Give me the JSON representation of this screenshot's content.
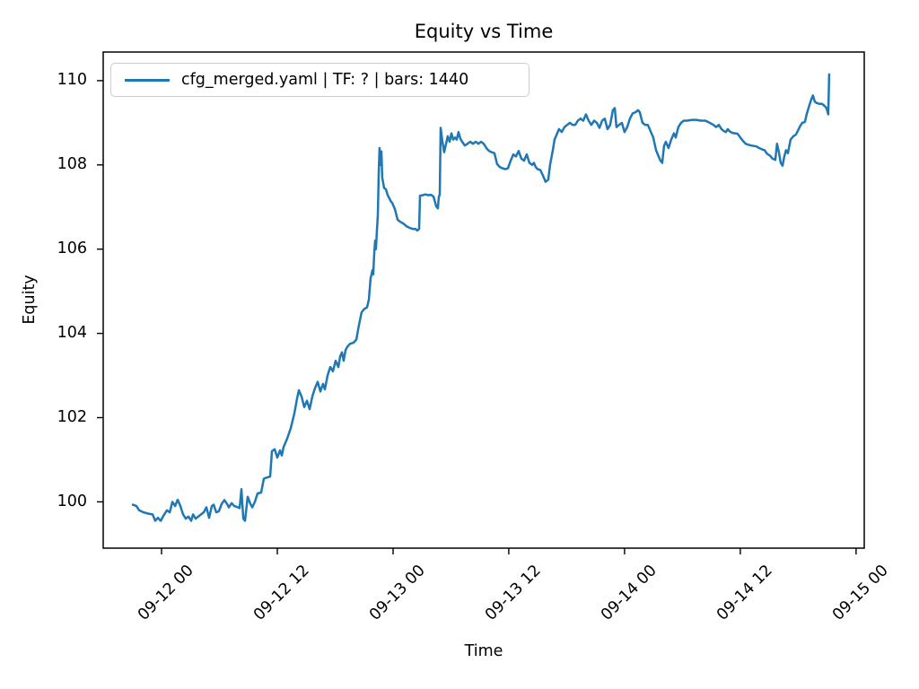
{
  "figure": {
    "title": "Equity vs Time",
    "x_axis_label": "Time",
    "y_axis_label": "Equity"
  },
  "legend": {
    "entries": [
      {
        "label": "cfg_merged.yaml | TF: ? | bars: 1440",
        "color": "#1f77b4"
      }
    ]
  },
  "colors": {
    "line": "#1f77b4",
    "spine": "#000000",
    "text": "#000000",
    "legend_border": "#cccccc",
    "background": "#ffffff"
  },
  "chart_data": {
    "type": "line",
    "title": "Equity vs Time",
    "xlabel": "Time",
    "ylabel": "Equity",
    "x_unit": "hours, 0 = 09-12 00",
    "xlim": [
      -6.05,
      72.85
    ],
    "ylim": [
      98.9,
      110.68
    ],
    "grid": false,
    "legend_position": "upper left",
    "x_ticks": [
      {
        "value": 0,
        "label": "09-12 00"
      },
      {
        "value": 12,
        "label": "09-12 12"
      },
      {
        "value": 24,
        "label": "09-13 00"
      },
      {
        "value": 36,
        "label": "09-13 12"
      },
      {
        "value": 48,
        "label": "09-14 00"
      },
      {
        "value": 60,
        "label": "09-14 12"
      },
      {
        "value": 72,
        "label": "09-15 00"
      }
    ],
    "y_ticks": [
      100,
      102,
      104,
      106,
      108,
      110
    ],
    "series": [
      {
        "name": "cfg_merged.yaml | TF: ? | bars: 1440",
        "color": "#1f77b4",
        "points": [
          [
            -2.98,
            99.93
          ],
          [
            -2.6,
            99.9
          ],
          [
            -2.33,
            99.8
          ],
          [
            -1.86,
            99.75
          ],
          [
            -1.4,
            99.72
          ],
          [
            -0.93,
            99.7
          ],
          [
            -0.65,
            99.55
          ],
          [
            -0.37,
            99.62
          ],
          [
            -0.09,
            99.55
          ],
          [
            0.28,
            99.7
          ],
          [
            0.56,
            99.8
          ],
          [
            0.84,
            99.75
          ],
          [
            1.12,
            100.0
          ],
          [
            1.4,
            99.9
          ],
          [
            1.67,
            100.05
          ],
          [
            1.95,
            99.9
          ],
          [
            2.23,
            99.7
          ],
          [
            2.51,
            99.6
          ],
          [
            2.79,
            99.65
          ],
          [
            3.07,
            99.55
          ],
          [
            3.26,
            99.7
          ],
          [
            3.53,
            99.6
          ],
          [
            3.81,
            99.65
          ],
          [
            4.09,
            99.7
          ],
          [
            4.37,
            99.75
          ],
          [
            4.65,
            99.87
          ],
          [
            4.93,
            99.62
          ],
          [
            5.21,
            99.9
          ],
          [
            5.4,
            99.93
          ],
          [
            5.67,
            99.75
          ],
          [
            5.95,
            99.78
          ],
          [
            6.23,
            99.95
          ],
          [
            6.51,
            100.04
          ],
          [
            6.79,
            99.95
          ],
          [
            6.98,
            99.87
          ],
          [
            7.26,
            99.97
          ],
          [
            7.53,
            99.9
          ],
          [
            7.81,
            99.88
          ],
          [
            8.09,
            99.85
          ],
          [
            8.28,
            100.3
          ],
          [
            8.47,
            99.6
          ],
          [
            8.65,
            99.55
          ],
          [
            8.93,
            100.12
          ],
          [
            9.21,
            99.95
          ],
          [
            9.4,
            99.87
          ],
          [
            9.67,
            100.0
          ],
          [
            9.95,
            100.2
          ],
          [
            10.33,
            100.22
          ],
          [
            10.6,
            100.55
          ],
          [
            10.98,
            100.58
          ],
          [
            11.26,
            100.6
          ],
          [
            11.44,
            101.2
          ],
          [
            11.72,
            101.25
          ],
          [
            12.0,
            101.05
          ],
          [
            12.28,
            101.22
          ],
          [
            12.47,
            101.1
          ],
          [
            12.65,
            101.3
          ],
          [
            13.02,
            101.5
          ],
          [
            13.4,
            101.75
          ],
          [
            13.77,
            102.1
          ],
          [
            14.05,
            102.45
          ],
          [
            14.23,
            102.65
          ],
          [
            14.51,
            102.5
          ],
          [
            14.79,
            102.25
          ],
          [
            15.07,
            102.4
          ],
          [
            15.35,
            102.2
          ],
          [
            15.63,
            102.5
          ],
          [
            15.91,
            102.7
          ],
          [
            16.19,
            102.85
          ],
          [
            16.47,
            102.62
          ],
          [
            16.74,
            102.8
          ],
          [
            16.93,
            102.67
          ],
          [
            17.21,
            103.0
          ],
          [
            17.49,
            103.2
          ],
          [
            17.77,
            103.1
          ],
          [
            18.05,
            103.35
          ],
          [
            18.33,
            103.2
          ],
          [
            18.51,
            103.45
          ],
          [
            18.7,
            103.55
          ],
          [
            18.88,
            103.35
          ],
          [
            19.07,
            103.6
          ],
          [
            19.26,
            103.68
          ],
          [
            19.53,
            103.75
          ],
          [
            19.91,
            103.78
          ],
          [
            20.19,
            103.85
          ],
          [
            20.47,
            104.2
          ],
          [
            20.74,
            104.5
          ],
          [
            21.02,
            104.58
          ],
          [
            21.3,
            104.62
          ],
          [
            21.49,
            104.8
          ],
          [
            21.67,
            105.3
          ],
          [
            21.86,
            105.5
          ],
          [
            21.95,
            105.4
          ],
          [
            22.05,
            105.9
          ],
          [
            22.14,
            106.2
          ],
          [
            22.23,
            106.0
          ],
          [
            22.33,
            106.45
          ],
          [
            22.42,
            106.8
          ],
          [
            22.51,
            107.8
          ],
          [
            22.6,
            108.4
          ],
          [
            22.7,
            108.0
          ],
          [
            22.79,
            108.32
          ],
          [
            22.88,
            107.7
          ],
          [
            23.07,
            107.45
          ],
          [
            23.26,
            107.42
          ],
          [
            23.35,
            107.35
          ],
          [
            23.44,
            107.28
          ],
          [
            23.63,
            107.2
          ],
          [
            23.81,
            107.12
          ],
          [
            23.91,
            107.1
          ],
          [
            24.19,
            106.95
          ],
          [
            24.47,
            106.7
          ],
          [
            24.74,
            106.65
          ],
          [
            25.12,
            106.6
          ],
          [
            25.4,
            106.54
          ],
          [
            25.77,
            106.5
          ],
          [
            26.05,
            106.48
          ],
          [
            26.33,
            106.48
          ],
          [
            26.51,
            106.44
          ],
          [
            26.7,
            106.48
          ],
          [
            26.79,
            107.27
          ],
          [
            27.07,
            107.28
          ],
          [
            27.35,
            107.3
          ],
          [
            27.63,
            107.28
          ],
          [
            27.91,
            107.29
          ],
          [
            28.19,
            107.25
          ],
          [
            28.47,
            107.02
          ],
          [
            28.65,
            106.97
          ],
          [
            28.74,
            107.23
          ],
          [
            28.84,
            107.3
          ],
          [
            28.93,
            108.88
          ],
          [
            29.12,
            108.55
          ],
          [
            29.3,
            108.3
          ],
          [
            29.49,
            108.5
          ],
          [
            29.67,
            108.68
          ],
          [
            29.86,
            108.55
          ],
          [
            30.05,
            108.75
          ],
          [
            30.23,
            108.6
          ],
          [
            30.42,
            108.65
          ],
          [
            30.6,
            108.6
          ],
          [
            30.79,
            108.78
          ],
          [
            30.98,
            108.62
          ],
          [
            31.16,
            108.55
          ],
          [
            31.44,
            108.46
          ],
          [
            31.72,
            108.5
          ],
          [
            32.0,
            108.55
          ],
          [
            32.28,
            108.5
          ],
          [
            32.56,
            108.55
          ],
          [
            32.84,
            108.5
          ],
          [
            33.12,
            108.55
          ],
          [
            33.4,
            108.5
          ],
          [
            33.67,
            108.4
          ],
          [
            33.95,
            108.33
          ],
          [
            34.23,
            108.3
          ],
          [
            34.51,
            108.28
          ],
          [
            34.79,
            108.02
          ],
          [
            35.07,
            107.95
          ],
          [
            35.35,
            107.92
          ],
          [
            35.63,
            107.9
          ],
          [
            35.91,
            107.92
          ],
          [
            36.19,
            108.1
          ],
          [
            36.47,
            108.25
          ],
          [
            36.74,
            108.2
          ],
          [
            37.02,
            108.33
          ],
          [
            37.3,
            108.15
          ],
          [
            37.58,
            108.1
          ],
          [
            37.86,
            108.25
          ],
          [
            38.14,
            108.05
          ],
          [
            38.42,
            108.0
          ],
          [
            38.6,
            108.05
          ],
          [
            38.79,
            107.95
          ],
          [
            38.98,
            107.9
          ],
          [
            39.26,
            107.88
          ],
          [
            39.53,
            107.75
          ],
          [
            39.81,
            107.6
          ],
          [
            40.09,
            107.65
          ],
          [
            40.28,
            108.0
          ],
          [
            40.56,
            108.35
          ],
          [
            40.74,
            108.6
          ],
          [
            40.93,
            108.7
          ],
          [
            41.21,
            108.85
          ],
          [
            41.49,
            108.78
          ],
          [
            41.77,
            108.9
          ],
          [
            42.05,
            108.95
          ],
          [
            42.33,
            109.0
          ],
          [
            42.6,
            108.95
          ],
          [
            42.88,
            108.95
          ],
          [
            43.16,
            109.05
          ],
          [
            43.44,
            109.1
          ],
          [
            43.72,
            109.05
          ],
          [
            44.0,
            109.2
          ],
          [
            44.28,
            109.05
          ],
          [
            44.56,
            108.95
          ],
          [
            44.84,
            109.05
          ],
          [
            45.12,
            109.0
          ],
          [
            45.4,
            108.88
          ],
          [
            45.67,
            109.05
          ],
          [
            45.95,
            109.1
          ],
          [
            46.23,
            108.85
          ],
          [
            46.51,
            108.95
          ],
          [
            46.79,
            109.3
          ],
          [
            46.98,
            109.35
          ],
          [
            47.16,
            108.9
          ],
          [
            47.44,
            108.95
          ],
          [
            47.72,
            109.0
          ],
          [
            48.0,
            108.78
          ],
          [
            48.28,
            108.9
          ],
          [
            48.56,
            109.1
          ],
          [
            48.84,
            109.22
          ],
          [
            49.12,
            109.25
          ],
          [
            49.4,
            109.3
          ],
          [
            49.58,
            109.25
          ],
          [
            49.86,
            109.0
          ],
          [
            50.14,
            108.95
          ],
          [
            50.42,
            108.95
          ],
          [
            50.7,
            108.8
          ],
          [
            50.98,
            108.65
          ],
          [
            51.26,
            108.35
          ],
          [
            51.53,
            108.2
          ],
          [
            51.72,
            108.1
          ],
          [
            51.91,
            108.05
          ],
          [
            52.09,
            108.45
          ],
          [
            52.28,
            108.55
          ],
          [
            52.56,
            108.4
          ],
          [
            52.84,
            108.6
          ],
          [
            53.12,
            108.75
          ],
          [
            53.3,
            108.65
          ],
          [
            53.58,
            108.9
          ],
          [
            53.86,
            109.0
          ],
          [
            54.14,
            109.05
          ],
          [
            54.51,
            109.05
          ],
          [
            54.98,
            109.07
          ],
          [
            55.44,
            109.07
          ],
          [
            55.91,
            109.05
          ],
          [
            56.37,
            109.05
          ],
          [
            56.84,
            109.0
          ],
          [
            57.21,
            108.95
          ],
          [
            57.49,
            108.9
          ],
          [
            57.77,
            108.95
          ],
          [
            58.05,
            108.85
          ],
          [
            58.33,
            108.8
          ],
          [
            58.51,
            108.78
          ],
          [
            58.7,
            108.85
          ],
          [
            58.88,
            108.8
          ],
          [
            59.16,
            108.76
          ],
          [
            59.44,
            108.75
          ],
          [
            59.72,
            108.74
          ],
          [
            60.0,
            108.65
          ],
          [
            60.28,
            108.57
          ],
          [
            60.56,
            108.5
          ],
          [
            60.84,
            108.48
          ],
          [
            61.12,
            108.46
          ],
          [
            61.4,
            108.45
          ],
          [
            61.67,
            108.44
          ],
          [
            61.95,
            108.4
          ],
          [
            62.23,
            108.37
          ],
          [
            62.51,
            108.35
          ],
          [
            62.79,
            108.26
          ],
          [
            63.07,
            108.22
          ],
          [
            63.35,
            108.15
          ],
          [
            63.63,
            108.12
          ],
          [
            63.81,
            108.5
          ],
          [
            64.0,
            108.3
          ],
          [
            64.19,
            108.05
          ],
          [
            64.37,
            107.98
          ],
          [
            64.56,
            108.2
          ],
          [
            64.74,
            108.35
          ],
          [
            64.93,
            108.28
          ],
          [
            65.21,
            108.6
          ],
          [
            65.49,
            108.68
          ],
          [
            65.77,
            108.72
          ],
          [
            66.05,
            108.85
          ],
          [
            66.23,
            108.93
          ],
          [
            66.42,
            109.0
          ],
          [
            66.7,
            109.02
          ],
          [
            66.88,
            109.2
          ],
          [
            67.07,
            109.35
          ],
          [
            67.35,
            109.55
          ],
          [
            67.53,
            109.65
          ],
          [
            67.72,
            109.5
          ],
          [
            67.91,
            109.47
          ],
          [
            68.19,
            109.45
          ],
          [
            68.47,
            109.45
          ],
          [
            68.74,
            109.4
          ],
          [
            68.93,
            109.35
          ],
          [
            69.12,
            109.2
          ],
          [
            69.21,
            110.15
          ]
        ]
      }
    ]
  }
}
